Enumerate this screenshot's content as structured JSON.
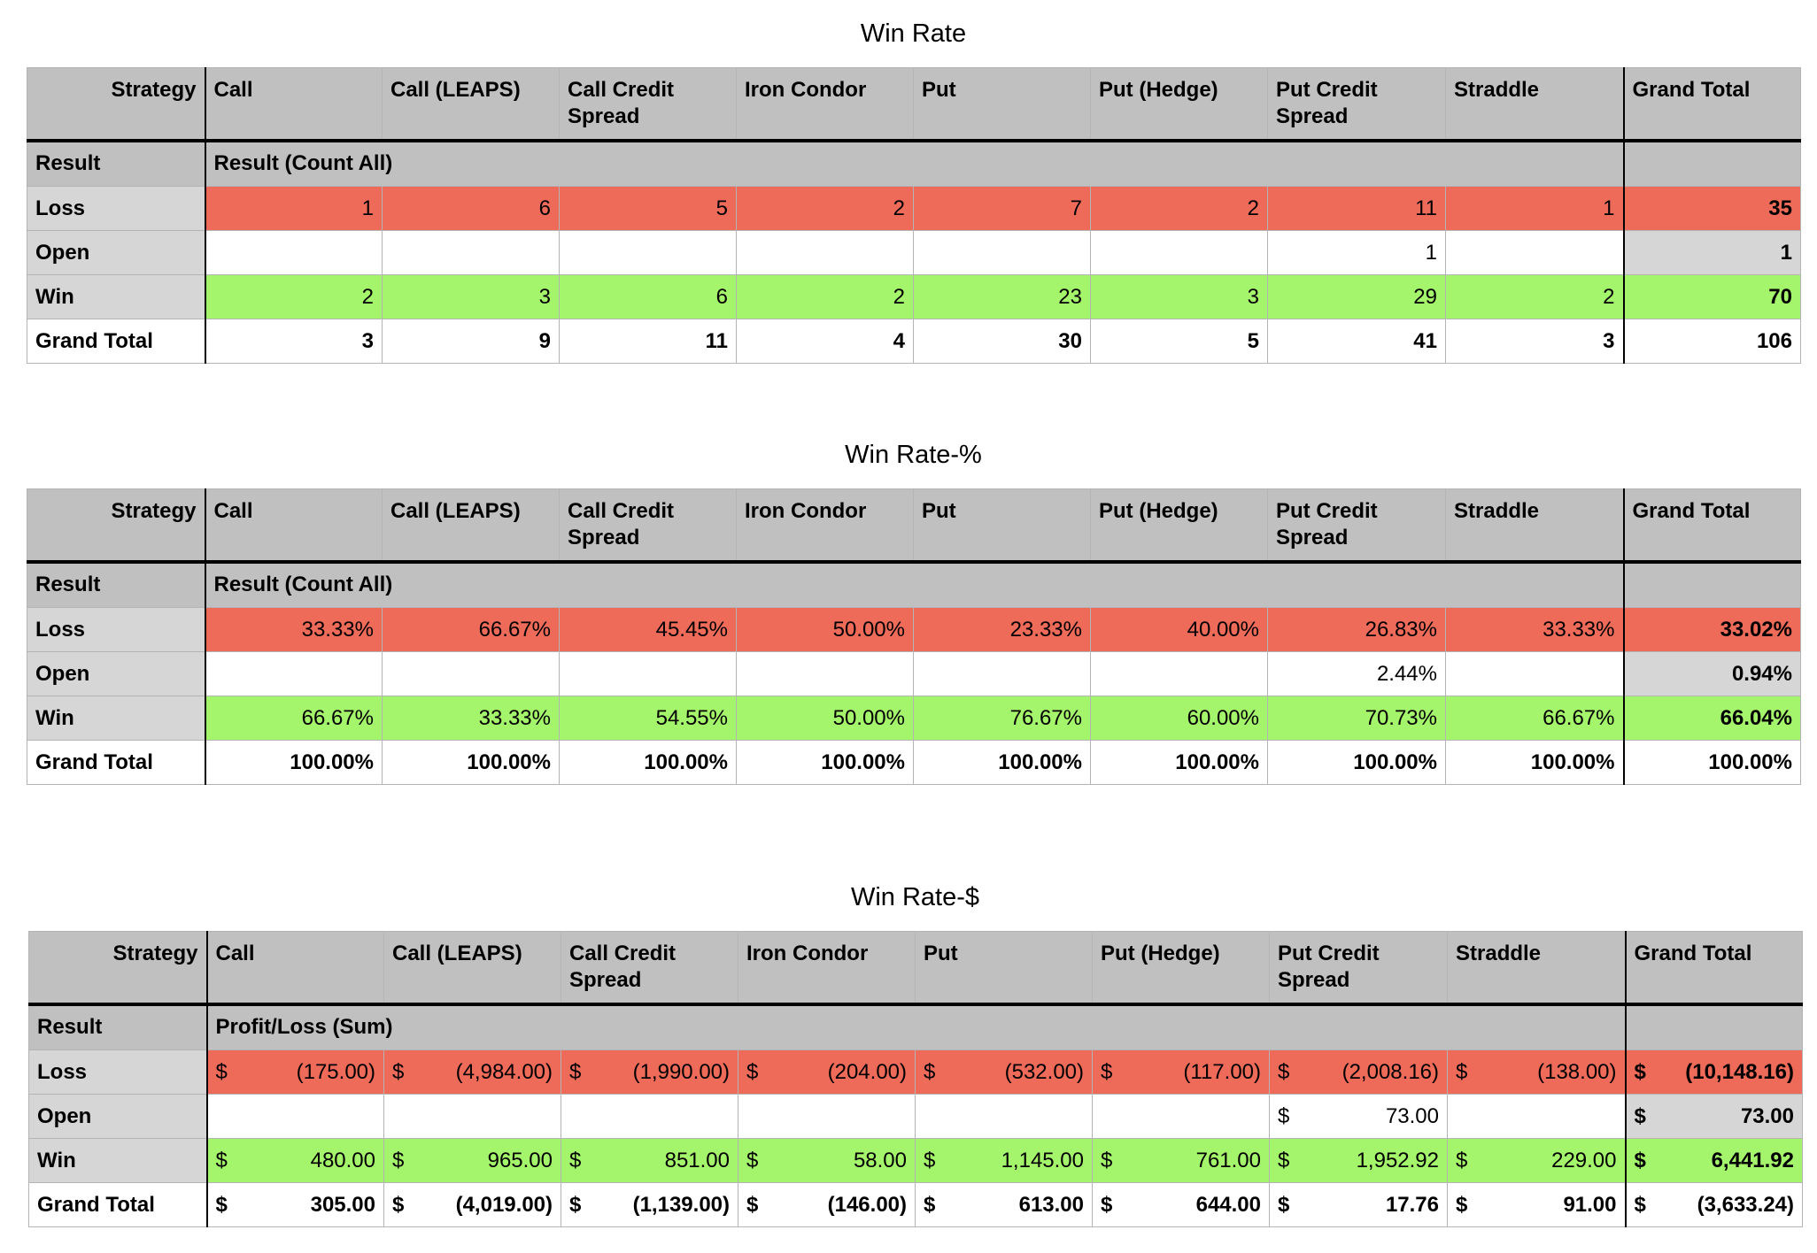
{
  "pivots": [
    {
      "title": "Win Rate",
      "corner_label": "Strategy",
      "row_header": "Result",
      "measure": "Result (Count All)",
      "columns": [
        "Call",
        "Call (LEAPS)",
        "Call Credit Spread",
        "Iron Condor",
        "Put",
        "Put (Hedge)",
        "Put Credit Spread",
        "Straddle",
        "Grand Total"
      ],
      "rows": [
        {
          "label": "Loss",
          "values": [
            "1",
            "6",
            "5",
            "2",
            "7",
            "2",
            "11",
            "1",
            "35"
          ]
        },
        {
          "label": "Open",
          "values": [
            "",
            "",
            "",
            "",
            "",
            "",
            "1",
            "",
            "1"
          ]
        },
        {
          "label": "Win",
          "values": [
            "2",
            "3",
            "6",
            "2",
            "23",
            "3",
            "29",
            "2",
            "70"
          ]
        },
        {
          "label": "Grand Total",
          "values": [
            "3",
            "9",
            "11",
            "4",
            "30",
            "5",
            "41",
            "3",
            "106"
          ]
        }
      ]
    },
    {
      "title": "Win Rate-%",
      "corner_label": "Strategy",
      "row_header": "Result",
      "measure": "Result (Count All)",
      "columns": [
        "Call",
        "Call (LEAPS)",
        "Call Credit Spread",
        "Iron Condor",
        "Put",
        "Put (Hedge)",
        "Put Credit Spread",
        "Straddle",
        "Grand Total"
      ],
      "rows": [
        {
          "label": "Loss",
          "values": [
            "33.33%",
            "66.67%",
            "45.45%",
            "50.00%",
            "23.33%",
            "40.00%",
            "26.83%",
            "33.33%",
            "33.02%"
          ]
        },
        {
          "label": "Open",
          "values": [
            "",
            "",
            "",
            "",
            "",
            "",
            "2.44%",
            "",
            "0.94%"
          ]
        },
        {
          "label": "Win",
          "values": [
            "66.67%",
            "33.33%",
            "54.55%",
            "50.00%",
            "76.67%",
            "60.00%",
            "70.73%",
            "66.67%",
            "66.04%"
          ]
        },
        {
          "label": "Grand Total",
          "values": [
            "100.00%",
            "100.00%",
            "100.00%",
            "100.00%",
            "100.00%",
            "100.00%",
            "100.00%",
            "100.00%",
            "100.00%"
          ]
        }
      ]
    },
    {
      "title": "Win Rate-$",
      "corner_label": "Strategy",
      "row_header": "Result",
      "measure": "Profit/Loss (Sum)",
      "currency": "$",
      "columns": [
        "Call",
        "Call (LEAPS)",
        "Call Credit Spread",
        "Iron Condor",
        "Put",
        "Put (Hedge)",
        "Put Credit Spread",
        "Straddle",
        "Grand Total"
      ],
      "rows": [
        {
          "label": "Loss",
          "values": [
            "(175.00)",
            "(4,984.00)",
            "(1,990.00)",
            "(204.00)",
            "(532.00)",
            "(117.00)",
            "(2,008.16)",
            "(138.00)",
            "(10,148.16)"
          ]
        },
        {
          "label": "Open",
          "values": [
            "",
            "",
            "",
            "",
            "",
            "",
            "73.00",
            "",
            "73.00"
          ]
        },
        {
          "label": "Win",
          "values": [
            "480.00",
            "965.00",
            "851.00",
            "58.00",
            "1,145.00",
            "761.00",
            "1,952.92",
            "229.00",
            "6,441.92"
          ]
        },
        {
          "label": "Grand Total",
          "values": [
            "305.00",
            "(4,019.00)",
            "(1,139.00)",
            "(146.00)",
            "613.00",
            "644.00",
            "17.76",
            "91.00",
            "(3,633.24)"
          ]
        }
      ]
    }
  ],
  "colors": {
    "loss": "#ee6b59",
    "win": "#a4f56b",
    "header": "#c0c0c0",
    "row_label": "#d6d6d6"
  }
}
